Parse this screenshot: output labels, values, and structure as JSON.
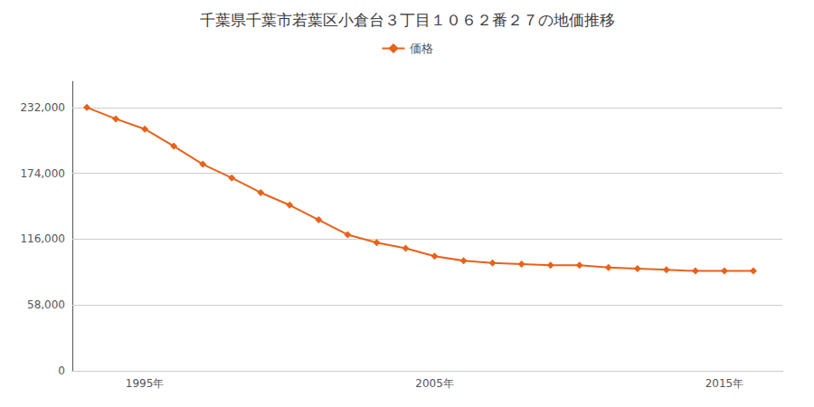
{
  "chart_data": {
    "type": "line",
    "title": "千葉県千葉市若葉区小倉台３丁目１０６２番２７の地価推移",
    "x": [
      1993,
      1994,
      1995,
      1996,
      1997,
      1998,
      1999,
      2000,
      2001,
      2002,
      2003,
      2004,
      2005,
      2006,
      2007,
      2008,
      2009,
      2010,
      2011,
      2012,
      2013,
      2014,
      2015,
      2016
    ],
    "series": [
      {
        "name": "価格",
        "color": "#e8621a",
        "marker": "diamond",
        "values": [
          232000,
          222000,
          213000,
          198000,
          182000,
          170000,
          157000,
          146000,
          133000,
          120000,
          113000,
          108000,
          101000,
          97000,
          95000,
          94000,
          93000,
          93000,
          91000,
          90000,
          89000,
          88000,
          88000,
          88000
        ]
      }
    ],
    "xlim": [
      1992.5,
      2017
    ],
    "xticks": [
      {
        "value": 1995,
        "label": "1995年"
      },
      {
        "value": 2005,
        "label": "2005年"
      },
      {
        "value": 2015,
        "label": "2015年"
      }
    ],
    "ylim": [
      0,
      255000
    ],
    "yticks": [
      0,
      {
        "value": 58000,
        "label": "58,000"
      },
      {
        "value": 116000,
        "label": "116,000"
      },
      {
        "value": 174000,
        "label": "174,000"
      },
      {
        "value": 232000,
        "label": "232,000"
      }
    ],
    "grid": true,
    "legend": "top"
  }
}
